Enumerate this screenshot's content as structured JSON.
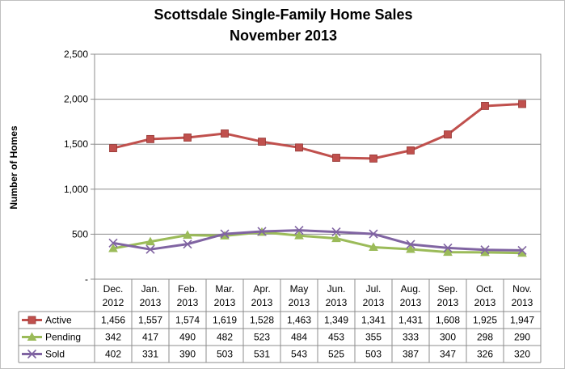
{
  "chart_data": {
    "type": "line",
    "title": [
      "Scottsdale Single-Family Home Sales",
      "November 2013"
    ],
    "ylabel": "Number of Homes",
    "xlabel": "",
    "ylim": [
      0,
      2500
    ],
    "yticks": [
      "-",
      "500",
      "1,000",
      "1,500",
      "2,000",
      "2,500"
    ],
    "grid": "horizontal",
    "legend": "data table below chart",
    "categories": [
      [
        "Dec.",
        "2012"
      ],
      [
        "Jan.",
        "2013"
      ],
      [
        "Feb.",
        "2013"
      ],
      [
        "Mar.",
        "2013"
      ],
      [
        "Apr.",
        "2013"
      ],
      [
        "May",
        "2013"
      ],
      [
        "Jun.",
        "2013"
      ],
      [
        "Jul.",
        "2013"
      ],
      [
        "Aug.",
        "2013"
      ],
      [
        "Sep.",
        "2013"
      ],
      [
        "Oct.",
        "2013"
      ],
      [
        "Nov.",
        "2013"
      ]
    ],
    "series": [
      {
        "name": "Active",
        "color": "#c0504d",
        "marker": "square",
        "values": [
          1456,
          1557,
          1574,
          1619,
          1528,
          1463,
          1349,
          1341,
          1431,
          1608,
          1925,
          1947
        ],
        "labels": [
          "1,456",
          "1,557",
          "1,574",
          "1,619",
          "1,528",
          "1,463",
          "1,349",
          "1,341",
          "1,431",
          "1,608",
          "1,925",
          "1,947"
        ]
      },
      {
        "name": "Pending",
        "color": "#9bbb59",
        "marker": "triangle",
        "values": [
          342,
          417,
          490,
          482,
          523,
          484,
          453,
          355,
          333,
          300,
          298,
          290
        ],
        "labels": [
          "342",
          "417",
          "490",
          "482",
          "523",
          "484",
          "453",
          "355",
          "333",
          "300",
          "298",
          "290"
        ]
      },
      {
        "name": "Sold",
        "color": "#8064a2",
        "marker": "x",
        "values": [
          402,
          331,
          390,
          503,
          531,
          543,
          525,
          503,
          387,
          347,
          326,
          320
        ],
        "labels": [
          "402",
          "331",
          "390",
          "503",
          "531",
          "543",
          "525",
          "503",
          "387",
          "347",
          "326",
          "320"
        ]
      }
    ]
  }
}
